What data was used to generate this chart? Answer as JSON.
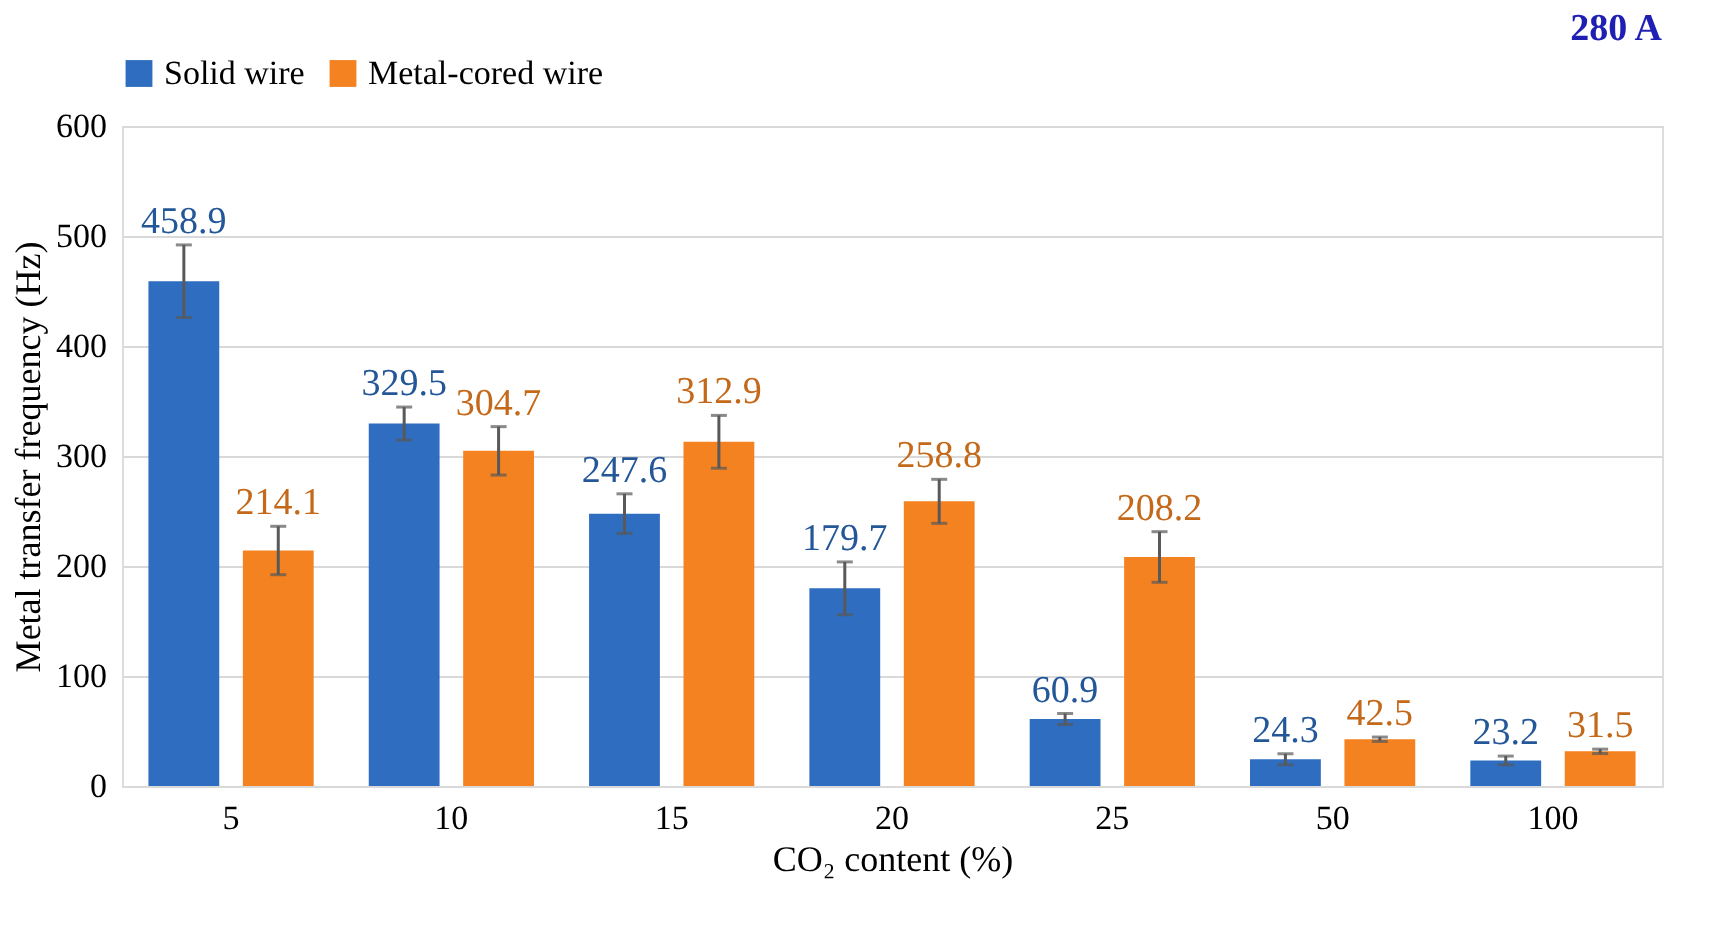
{
  "chart_data": {
    "type": "bar",
    "title": "280 A",
    "xlabel": "CO₂ content (%)",
    "ylabel": "Metal transfer frequency (Hz)",
    "categories": [
      "5",
      "10",
      "15",
      "20",
      "25",
      "50",
      "100"
    ],
    "series": [
      {
        "name": "Solid wire",
        "color": "#2e6dbf",
        "values": [
          458.9,
          329.5,
          247.6,
          179.7,
          60.9,
          24.3,
          23.2
        ],
        "errors": [
          33,
          15,
          18,
          24,
          5,
          5,
          4
        ]
      },
      {
        "name": "Metal-cored wire",
        "color": "#f58220",
        "values": [
          214.1,
          304.7,
          312.9,
          258.8,
          208.2,
          42.5,
          31.5
        ],
        "errors": [
          22,
          22,
          24,
          20,
          23,
          2,
          2
        ]
      }
    ],
    "ylim": [
      0,
      600
    ],
    "yticks": [
      0,
      100,
      200,
      300,
      400,
      500,
      600
    ],
    "grid": "y",
    "legend": "top",
    "data_labels": true
  }
}
